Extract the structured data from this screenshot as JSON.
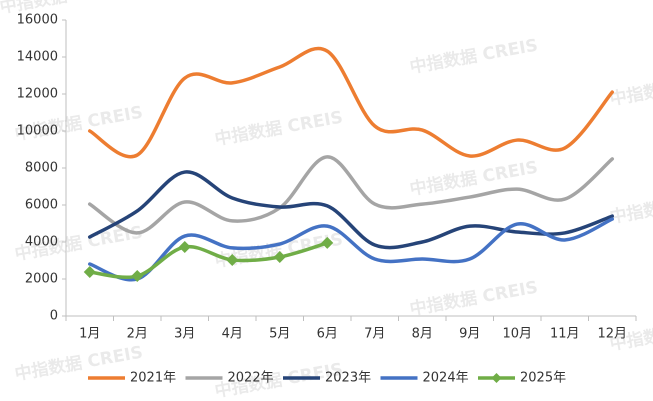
{
  "watermark": "中指数据 CREIS",
  "chart_data": {
    "type": "line",
    "categories": [
      "1月",
      "2月",
      "3月",
      "4月",
      "5月",
      "6月",
      "7月",
      "8月",
      "9月",
      "10月",
      "11月",
      "12月"
    ],
    "series": [
      {
        "name": "2021年",
        "color": "#ED7D31",
        "values": [
          10000,
          8700,
          12860,
          12600,
          13460,
          14320,
          10270,
          10050,
          8650,
          9510,
          9080,
          12100
        ]
      },
      {
        "name": "2022年",
        "color": "#A5A5A5",
        "values": [
          6050,
          4490,
          6160,
          5140,
          5840,
          8600,
          6050,
          6050,
          6430,
          6860,
          6320,
          8490
        ]
      },
      {
        "name": "2023年",
        "color": "#264478",
        "values": [
          4270,
          5680,
          7780,
          6380,
          5890,
          5950,
          3840,
          4000,
          4860,
          4540,
          4490,
          5400
        ]
      },
      {
        "name": "2024年",
        "color": "#4472C4",
        "values": [
          2810,
          2000,
          4320,
          3680,
          3890,
          4860,
          3080,
          3080,
          3080,
          4970,
          4110,
          5240
        ]
      },
      {
        "name": "2025年",
        "color": "#70AD47",
        "marker": "diamond",
        "values": [
          2380,
          2160,
          3730,
          3030,
          3190,
          3950,
          null,
          null,
          null,
          null,
          null,
          null
        ]
      }
    ],
    "ylim": [
      0,
      16000
    ],
    "yticks": [
      0,
      2000,
      4000,
      6000,
      8000,
      10000,
      12000,
      14000,
      16000
    ],
    "grid": false,
    "legend": "bottom"
  }
}
